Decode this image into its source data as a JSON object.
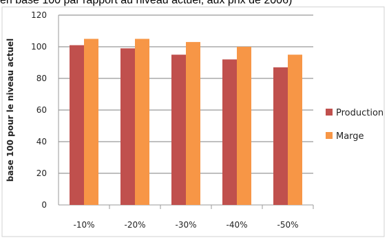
{
  "chart_data": {
    "type": "bar",
    "title": "en base 100 par rapport au niveau actuel, aux prix de 2006)",
    "xlabel": "",
    "ylabel": "base 100 pour le niveau actuel",
    "categories": [
      "-10%",
      "-20%",
      "-30%",
      "-40%",
      "-50%"
    ],
    "series": [
      {
        "name": "Production",
        "values": [
          101,
          99,
          95,
          92,
          87
        ],
        "color": "#c0504d"
      },
      {
        "name": "Marge",
        "values": [
          105,
          105,
          103,
          100,
          95
        ],
        "color": "#f79646"
      }
    ],
    "ylim": [
      0,
      120
    ],
    "yticks": [
      0,
      20,
      40,
      60,
      80,
      100,
      120
    ],
    "grid": true,
    "legend": "right"
  }
}
